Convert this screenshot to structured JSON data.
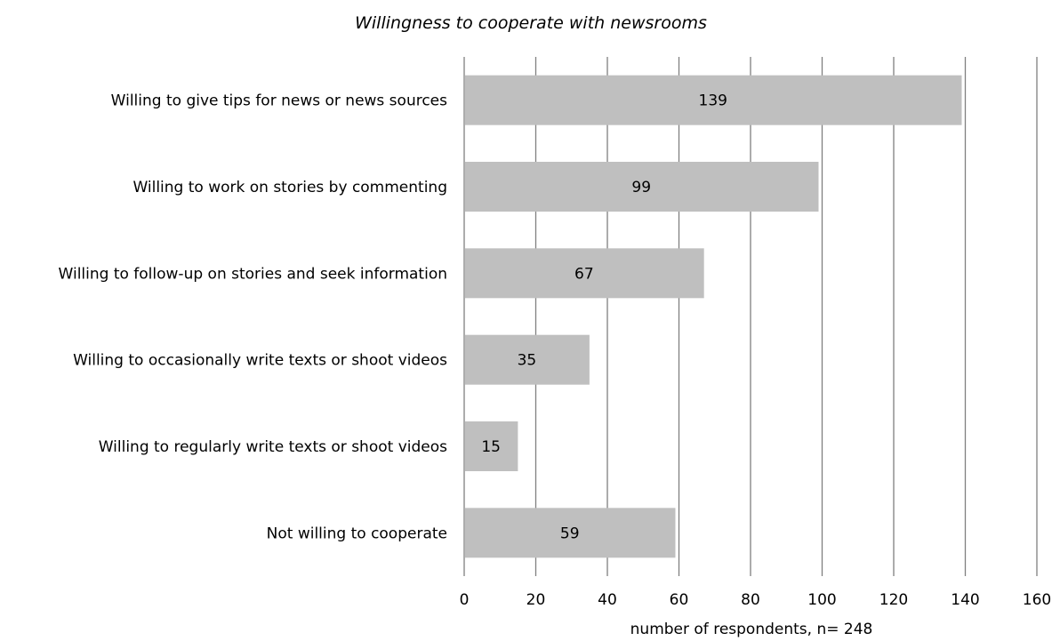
{
  "chart_data": {
    "type": "bar",
    "orientation": "horizontal",
    "title": "Willingness to cooperate with newsrooms",
    "xlabel": "number of respondents, n= 248",
    "ylabel": "",
    "categories": [
      "Willing to give tips for news or news sources",
      "Willing to work on stories by commenting",
      "Willing to follow-up on stories and seek information",
      "Willing to occasionally write texts or shoot videos",
      "Willing to regularly write texts or shoot videos",
      "Not willing to cooperate"
    ],
    "values": [
      139,
      99,
      67,
      35,
      15,
      59
    ],
    "xlim": [
      0,
      160
    ],
    "xticks": [
      0,
      20,
      40,
      60,
      80,
      100,
      120,
      140,
      160
    ],
    "grid": "vertical",
    "legend": "none",
    "colors": {
      "bar": "#bfbfbf",
      "grid": "#808080"
    }
  }
}
